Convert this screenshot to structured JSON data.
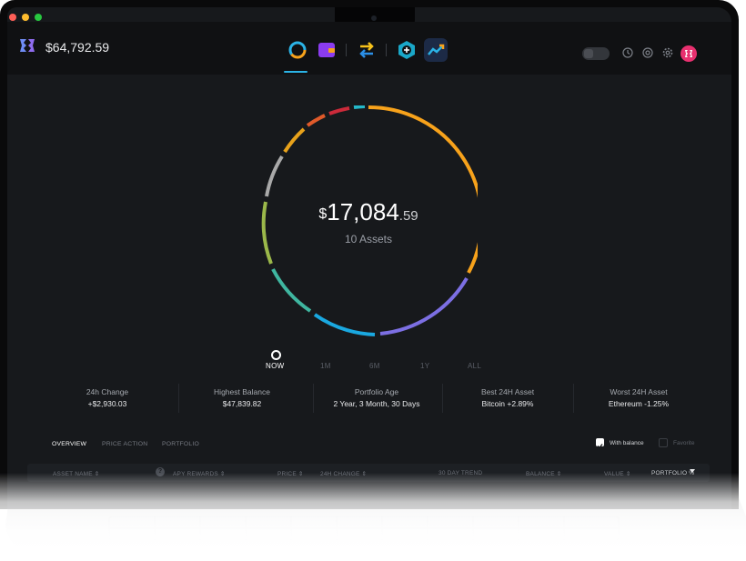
{
  "header": {
    "total_balance": "$64,792.59",
    "nav_icons": [
      "portfolio-donut-icon",
      "wallet-icon",
      "exchange-icon",
      "apps-add-icon",
      "trend-icon"
    ],
    "right_icons": [
      "lock-icon",
      "history-icon",
      "support-icon",
      "settings-icon",
      "exodus-avatar-icon"
    ]
  },
  "portfolio": {
    "currency_symbol": "$",
    "amount_main": "17,084",
    "amount_cents": ".59",
    "assets_count": "10 Assets"
  },
  "periods": [
    "NOW",
    "1M",
    "6M",
    "1Y",
    "ALL"
  ],
  "active_period": "NOW",
  "stats": [
    {
      "label": "24h Change",
      "value": "+$2,930.03"
    },
    {
      "label": "Highest Balance",
      "value": "$47,839.82"
    },
    {
      "label": "Portfolio Age",
      "value": "2 Year, 3 Month, 30 Days"
    },
    {
      "label": "Best 24H Asset",
      "value": "Bitcoin +2.89%"
    },
    {
      "label": "Worst 24H Asset",
      "value": "Ethereum -1.25%"
    }
  ],
  "tabs": [
    "OVERVIEW",
    "PRICE ACTION",
    "PORTFOLIO"
  ],
  "active_tab": "OVERVIEW",
  "filters": {
    "with_balance": "With balance",
    "with_balance_checked": true,
    "favorite": "Favorite",
    "favorite_checked": false
  },
  "table_headers": {
    "asset_name": "ASSET NAME ⇕",
    "apy_rewards": "APY REWARDS ⇕",
    "price": "PRICE ⇕",
    "change_24h": "24H CHANGE ⇕",
    "trend_30d": "30 DAY TREND",
    "balance": "BALANCE ⇕",
    "value": "VALUE ⇕",
    "portfolio_pct": "PORTFOLIO %"
  },
  "help_glyph": "?",
  "colors": {
    "accent": "#2bb3e6",
    "avatar": "#e8306f",
    "segments": [
      "#f7a21b",
      "#7c6fe3",
      "#1aa8e0",
      "#3fb6a0",
      "#9bb84a",
      "#a9a9a9",
      "#e8a21b",
      "#e05a2a",
      "#cc2a3a",
      "#24b8c9"
    ]
  }
}
